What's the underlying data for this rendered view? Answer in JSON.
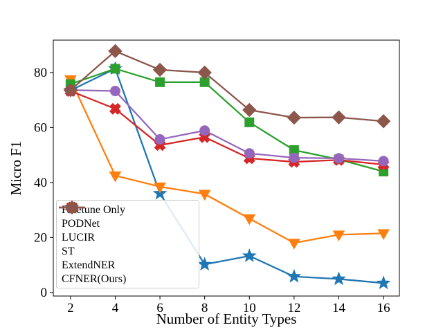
{
  "figure": {
    "background": "#ffffff"
  },
  "chart_data": {
    "type": "line",
    "title": "",
    "xlabel": "Number of Entity Types",
    "ylabel": "Micro F1",
    "x": [
      2,
      4,
      6,
      8,
      10,
      12,
      14,
      16
    ],
    "xticks": [
      "2",
      "4",
      "6",
      "8",
      "10",
      "12",
      "14",
      "16"
    ],
    "yticks": [
      "0",
      "20",
      "40",
      "60",
      "80"
    ],
    "xlim": [
      1.23,
      16.71
    ],
    "ylim": [
      -1.3,
      91.8
    ],
    "grid": false,
    "legend_position": "lower-left",
    "series": [
      {
        "name": "Finetune Only",
        "color": "#1f77b4",
        "marker": "star",
        "values": [
          73.5,
          81.4,
          36.0,
          10.2,
          13.3,
          5.8,
          4.9,
          3.4
        ]
      },
      {
        "name": "PODNet",
        "color": "#ff7f0e",
        "marker": "triangle-down",
        "values": [
          77.5,
          42.5,
          38.5,
          35.8,
          26.9,
          18.0,
          21.0,
          21.5
        ]
      },
      {
        "name": "LUCIR",
        "color": "#2ca02c",
        "marker": "square",
        "values": [
          75.8,
          81.4,
          76.5,
          76.5,
          61.9,
          51.8,
          48.4,
          44.0
        ]
      },
      {
        "name": "ST",
        "color": "#d62728",
        "marker": "x",
        "values": [
          73.3,
          66.8,
          53.6,
          56.5,
          48.8,
          47.5,
          48.2,
          46.5
        ]
      },
      {
        "name": "ExtendNER",
        "color": "#9467bd",
        "marker": "circle",
        "values": [
          73.6,
          73.3,
          55.7,
          58.9,
          50.6,
          49.0,
          48.8,
          47.8
        ]
      },
      {
        "name": "CFNER(Ours)",
        "color": "#8c564b",
        "marker": "diamond",
        "values": [
          73.6,
          87.8,
          81.0,
          80.0,
          66.4,
          63.6,
          63.7,
          62.3
        ]
      }
    ]
  }
}
